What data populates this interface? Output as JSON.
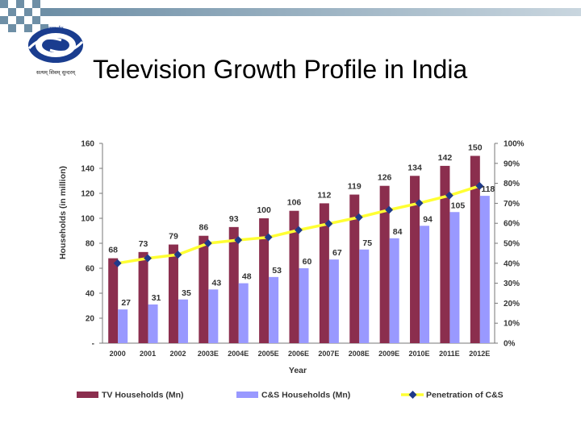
{
  "slide": {
    "title": "Television Growth Profile in India",
    "logo_text": "दूरदर्शन",
    "logo_tagline": "सत्यम् शिवम् सुन्दरम्"
  },
  "colors": {
    "tv_bar": "#8B2E4E",
    "cs_bar": "#9999FF",
    "penetration_line": "#FFFF33",
    "penetration_marker": "#1F3A8A",
    "header_dark": "#6E8FA6",
    "header_light": "#C9D6DF",
    "logo_blue": "#1A3D8F"
  },
  "chart_data": {
    "type": "bar",
    "categories": [
      "2000",
      "2001",
      "2002",
      "2003E",
      "2004E",
      "2005E",
      "2006E",
      "2007E",
      "2008E",
      "2009E",
      "2010E",
      "2011E",
      "2012E"
    ],
    "series": [
      {
        "name": "TV Households (Mn)",
        "type": "bar",
        "axis": "left",
        "values": [
          68,
          73,
          79,
          86,
          93,
          100,
          106,
          112,
          119,
          126,
          134,
          142,
          150
        ]
      },
      {
        "name": "C&S Households (Mn)",
        "type": "bar",
        "axis": "left",
        "values": [
          27,
          31,
          35,
          43,
          48,
          53,
          60,
          67,
          75,
          84,
          94,
          105,
          118
        ]
      },
      {
        "name": "Penetration of C&S",
        "type": "line",
        "axis": "right",
        "values": [
          40,
          42.5,
          44.3,
          50,
          51.6,
          53,
          56.6,
          59.8,
          63,
          66.7,
          70.1,
          73.9,
          78.7
        ]
      }
    ],
    "xlabel": "Year",
    "ylabel": "Households (in million)",
    "ylim": [
      0,
      160
    ],
    "y_ticks": [
      "-",
      "20",
      "40",
      "60",
      "80",
      "100",
      "120",
      "140",
      "160"
    ],
    "y2lim": [
      0,
      100
    ],
    "y2_ticks": [
      "0%",
      "10%",
      "20%",
      "30%",
      "40%",
      "50%",
      "60%",
      "70%",
      "80%",
      "90%",
      "100%"
    ],
    "legend_position": "bottom",
    "grid": false
  }
}
